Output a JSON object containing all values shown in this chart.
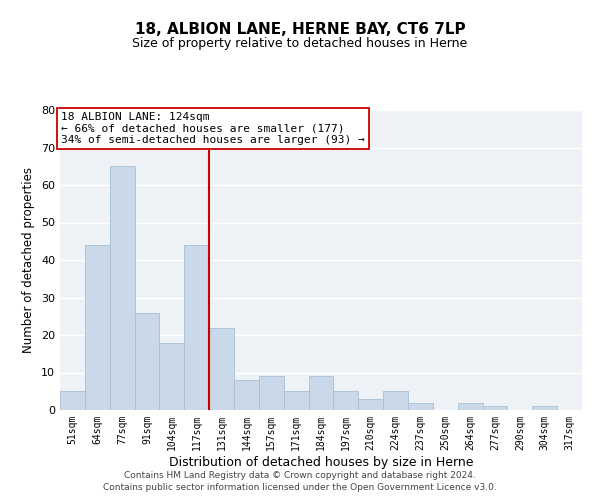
{
  "title": "18, ALBION LANE, HERNE BAY, CT6 7LP",
  "subtitle": "Size of property relative to detached houses in Herne",
  "xlabel": "Distribution of detached houses by size in Herne",
  "ylabel": "Number of detached properties",
  "bar_labels": [
    "51sqm",
    "64sqm",
    "77sqm",
    "91sqm",
    "104sqm",
    "117sqm",
    "131sqm",
    "144sqm",
    "157sqm",
    "171sqm",
    "184sqm",
    "197sqm",
    "210sqm",
    "224sqm",
    "237sqm",
    "250sqm",
    "264sqm",
    "277sqm",
    "290sqm",
    "304sqm",
    "317sqm"
  ],
  "bar_values": [
    5,
    44,
    65,
    26,
    18,
    44,
    22,
    8,
    9,
    5,
    9,
    5,
    3,
    5,
    2,
    0,
    2,
    1,
    0,
    1,
    0
  ],
  "bar_color": "#c9d9ea",
  "bar_edge_color": "#a8bfd4",
  "vline_color": "#cc0000",
  "annotation_line1": "18 ALBION LANE: 124sqm",
  "annotation_line2": "← 66% of detached houses are smaller (177)",
  "annotation_line3": "34% of semi-detached houses are larger (93) →",
  "ylim": [
    0,
    80
  ],
  "yticks": [
    0,
    10,
    20,
    30,
    40,
    50,
    60,
    70,
    80
  ],
  "footer1": "Contains HM Land Registry data © Crown copyright and database right 2024.",
  "footer2": "Contains public sector information licensed under the Open Government Licence v3.0.",
  "bg_color": "#eef2f7",
  "grid_color": "#ffffff",
  "vline_index": 6
}
